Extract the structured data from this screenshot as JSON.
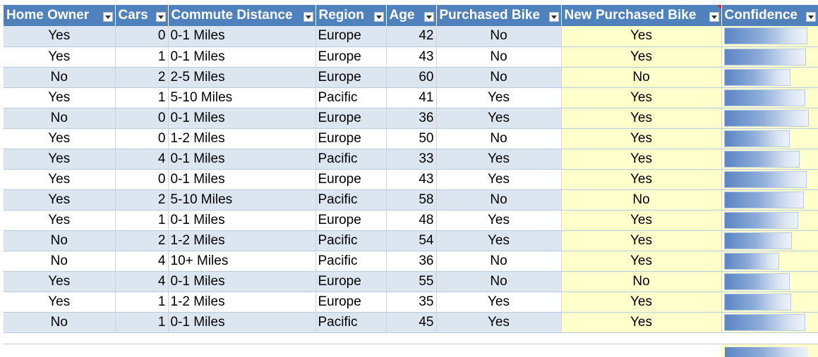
{
  "headers": {
    "home_owner": "Home Owner",
    "cars": "Cars",
    "commute": "Commute Distance",
    "region": "Region",
    "age": "Age",
    "purchased": "Purchased Bike",
    "new_purchased": "New Purchased Bike",
    "confidence": "Confidence"
  },
  "colors": {
    "header_bg": "#4f81bd",
    "band_bg": "#dce6f1",
    "highlight_bg": "#ffffcc",
    "databar_start": "#5a86c4"
  },
  "rows": [
    {
      "home_owner": "Yes",
      "cars": "0",
      "commute": "0-1 Miles",
      "region": "Europe",
      "age": "42",
      "purchased": "No",
      "new_purchased": "Yes",
      "confidence": 0.97
    },
    {
      "home_owner": "Yes",
      "cars": "1",
      "commute": "0-1 Miles",
      "region": "Europe",
      "age": "43",
      "purchased": "No",
      "new_purchased": "Yes",
      "confidence": 0.95
    },
    {
      "home_owner": "No",
      "cars": "2",
      "commute": "2-5 Miles",
      "region": "Europe",
      "age": "60",
      "purchased": "No",
      "new_purchased": "No",
      "confidence": 0.77
    },
    {
      "home_owner": "Yes",
      "cars": "1",
      "commute": "5-10 Miles",
      "region": "Pacific",
      "age": "41",
      "purchased": "Yes",
      "new_purchased": "Yes",
      "confidence": 0.94
    },
    {
      "home_owner": "No",
      "cars": "0",
      "commute": "0-1 Miles",
      "region": "Europe",
      "age": "36",
      "purchased": "Yes",
      "new_purchased": "Yes",
      "confidence": 0.98
    },
    {
      "home_owner": "Yes",
      "cars": "0",
      "commute": "1-2 Miles",
      "region": "Europe",
      "age": "50",
      "purchased": "No",
      "new_purchased": "Yes",
      "confidence": 0.76
    },
    {
      "home_owner": "Yes",
      "cars": "4",
      "commute": "0-1 Miles",
      "region": "Pacific",
      "age": "33",
      "purchased": "Yes",
      "new_purchased": "Yes",
      "confidence": 0.88
    },
    {
      "home_owner": "Yes",
      "cars": "0",
      "commute": "0-1 Miles",
      "region": "Europe",
      "age": "43",
      "purchased": "Yes",
      "new_purchased": "Yes",
      "confidence": 0.96
    },
    {
      "home_owner": "Yes",
      "cars": "2",
      "commute": "5-10 Miles",
      "region": "Pacific",
      "age": "58",
      "purchased": "No",
      "new_purchased": "No",
      "confidence": 0.93
    },
    {
      "home_owner": "Yes",
      "cars": "1",
      "commute": "0-1 Miles",
      "region": "Europe",
      "age": "48",
      "purchased": "Yes",
      "new_purchased": "Yes",
      "confidence": 0.86
    },
    {
      "home_owner": "No",
      "cars": "2",
      "commute": "1-2 Miles",
      "region": "Pacific",
      "age": "54",
      "purchased": "Yes",
      "new_purchased": "Yes",
      "confidence": 0.79
    },
    {
      "home_owner": "No",
      "cars": "4",
      "commute": "10+ Miles",
      "region": "Pacific",
      "age": "36",
      "purchased": "No",
      "new_purchased": "Yes",
      "confidence": 0.64
    },
    {
      "home_owner": "Yes",
      "cars": "4",
      "commute": "0-1 Miles",
      "region": "Europe",
      "age": "55",
      "purchased": "No",
      "new_purchased": "No",
      "confidence": 0.76
    },
    {
      "home_owner": "Yes",
      "cars": "1",
      "commute": "1-2 Miles",
      "region": "Europe",
      "age": "35",
      "purchased": "Yes",
      "new_purchased": "Yes",
      "confidence": 0.78
    },
    {
      "home_owner": "No",
      "cars": "1",
      "commute": "0-1 Miles",
      "region": "Pacific",
      "age": "45",
      "purchased": "Yes",
      "new_purchased": "Yes",
      "confidence": 0.94
    }
  ]
}
